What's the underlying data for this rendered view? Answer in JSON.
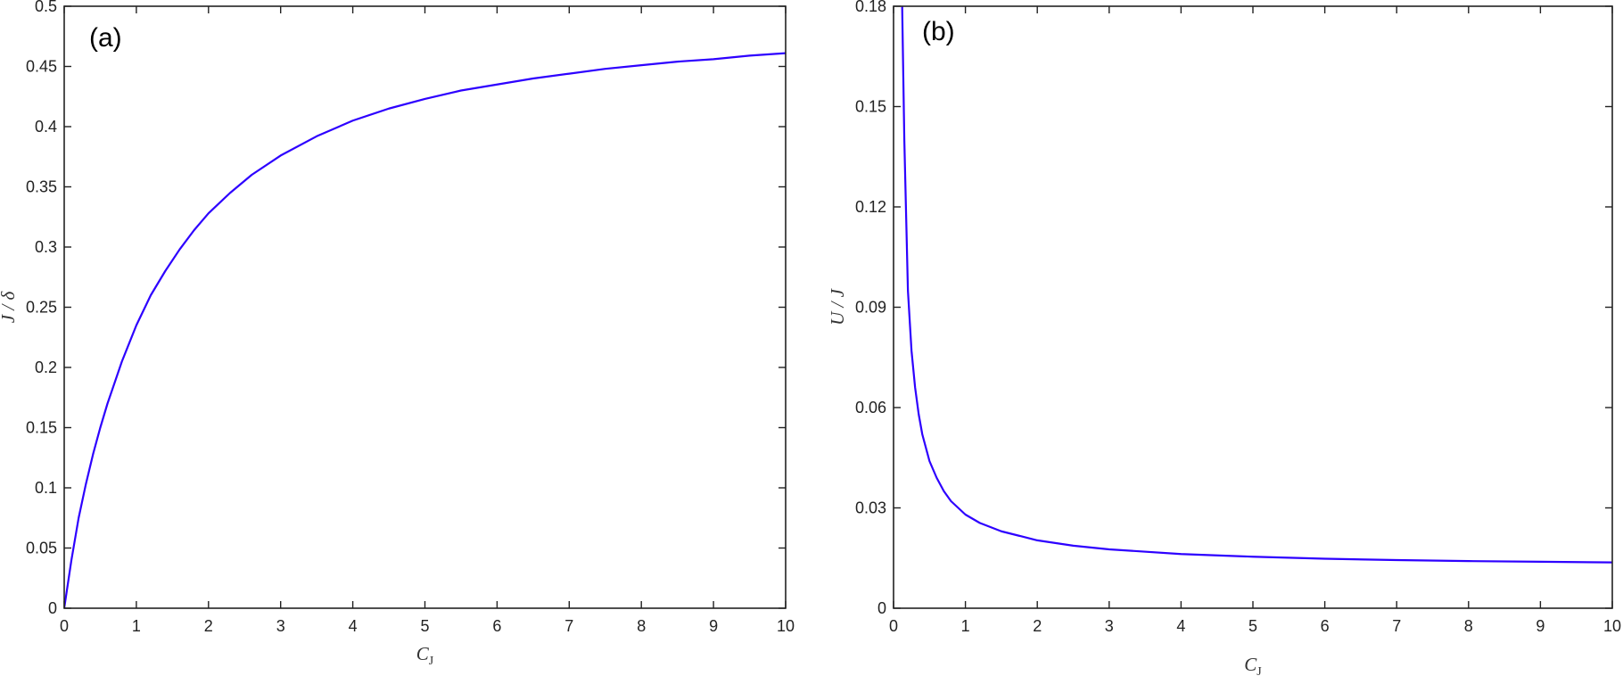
{
  "chart_data": [
    {
      "type": "line",
      "panel_label": "(a)",
      "xlabel": "C",
      "xlabel_sub": "J",
      "ylabel": "J / δ",
      "xlim": [
        0,
        10
      ],
      "ylim": [
        0,
        0.5
      ],
      "x_ticks": [
        0,
        1,
        2,
        3,
        4,
        5,
        6,
        7,
        8,
        9,
        10
      ],
      "x_tick_labels": [
        "0",
        "1",
        "2",
        "3",
        "4",
        "5",
        "6",
        "7",
        "8",
        "9",
        "10"
      ],
      "y_ticks": [
        0,
        0.05,
        0.1,
        0.15,
        0.2,
        0.25,
        0.3,
        0.35,
        0.4,
        0.45,
        0.5
      ],
      "y_tick_labels": [
        "0",
        "0.05",
        "0.1",
        "0.15",
        "0.2",
        "0.25",
        "0.3",
        "0.35",
        "0.4",
        "0.45",
        "0.5"
      ],
      "grid": false,
      "series": [
        {
          "color": "#2d00ff",
          "x": [
            0,
            0.1,
            0.2,
            0.3,
            0.4,
            0.5,
            0.6,
            0.8,
            1.0,
            1.2,
            1.4,
            1.6,
            1.8,
            2.0,
            2.3,
            2.6,
            3.0,
            3.5,
            4.0,
            4.5,
            5.0,
            5.5,
            6.0,
            6.5,
            7.0,
            7.5,
            8.0,
            8.5,
            9.0,
            9.5,
            10.0
          ],
          "y": [
            0,
            0.04,
            0.075,
            0.103,
            0.128,
            0.15,
            0.17,
            0.205,
            0.235,
            0.26,
            0.28,
            0.298,
            0.314,
            0.328,
            0.345,
            0.36,
            0.376,
            0.392,
            0.405,
            0.415,
            0.423,
            0.43,
            0.435,
            0.44,
            0.444,
            0.448,
            0.451,
            0.454,
            0.456,
            0.459,
            0.461
          ]
        }
      ]
    },
    {
      "type": "line",
      "panel_label": "(b)",
      "xlabel": "C",
      "xlabel_sub": "J",
      "ylabel": "U / J",
      "xlim": [
        0,
        10
      ],
      "ylim": [
        0,
        0.18
      ],
      "x_ticks": [
        0,
        1,
        2,
        3,
        4,
        5,
        6,
        7,
        8,
        9,
        10
      ],
      "x_tick_labels": [
        "0",
        "1",
        "2",
        "3",
        "4",
        "5",
        "6",
        "7",
        "8",
        "9",
        "10"
      ],
      "y_ticks": [
        0,
        0.03,
        0.06,
        0.09,
        0.12,
        0.15,
        0.18
      ],
      "y_tick_labels": [
        "0",
        "0.03",
        "0.06",
        "0.09",
        "0.12",
        "0.15",
        "0.18"
      ],
      "grid": false,
      "series": [
        {
          "color": "#2d00ff",
          "x": [
            0.12,
            0.15,
            0.2,
            0.25,
            0.3,
            0.35,
            0.4,
            0.5,
            0.6,
            0.7,
            0.8,
            1.0,
            1.2,
            1.5,
            2.0,
            2.5,
            3.0,
            4.0,
            5.0,
            6.0,
            7.0,
            8.0,
            9.0,
            10.0
          ],
          "y": [
            0.18,
            0.14,
            0.095,
            0.077,
            0.066,
            0.058,
            0.052,
            0.044,
            0.039,
            0.035,
            0.032,
            0.028,
            0.0255,
            0.023,
            0.0203,
            0.0187,
            0.0176,
            0.0162,
            0.0154,
            0.0148,
            0.0144,
            0.0141,
            0.0139,
            0.0137
          ]
        }
      ]
    }
  ]
}
